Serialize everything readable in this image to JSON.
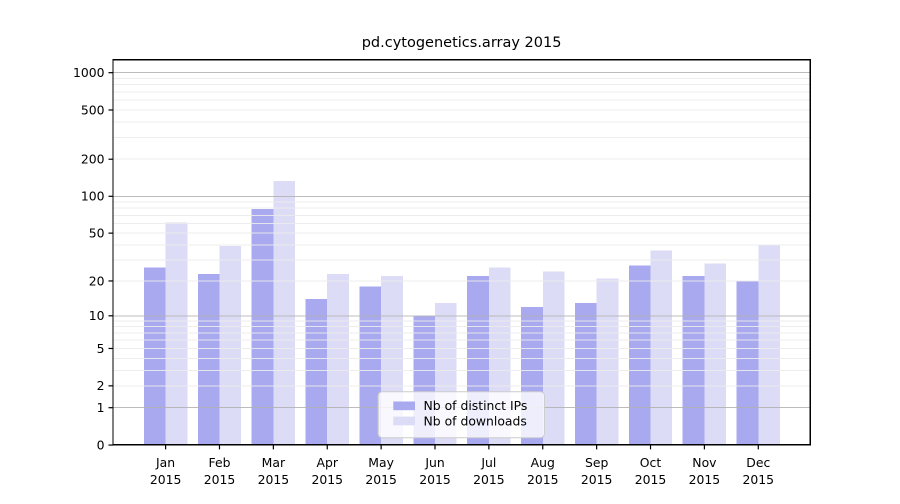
{
  "chart_data": {
    "type": "bar",
    "title": "pd.cytogenetics.array 2015",
    "categories": [
      "Jan",
      "Feb",
      "Mar",
      "Apr",
      "May",
      "Jun",
      "Jul",
      "Aug",
      "Sep",
      "Oct",
      "Nov",
      "Dec"
    ],
    "x_tick_year": "2015",
    "series": [
      {
        "name": "Nb of distinct IPs",
        "color": "#a9a9f0",
        "values": [
          26,
          23,
          79,
          14,
          18,
          10,
          22,
          12,
          13,
          27,
          22,
          20
        ]
      },
      {
        "name": "Nb of downloads",
        "color": "#dcdcf7",
        "values": [
          61,
          39,
          133,
          23,
          22,
          13,
          26,
          24,
          21,
          36,
          28,
          40
        ]
      }
    ],
    "y_axis": {
      "scale": "log1p",
      "tick_values": [
        0,
        1,
        2,
        5,
        10,
        20,
        50,
        100,
        200,
        500,
        1000
      ],
      "tick_labels": [
        "0",
        "1",
        "2",
        "5",
        "10",
        "20",
        "50",
        "100",
        "200",
        "500",
        "1000"
      ],
      "major_grid_values": [
        1,
        10,
        100,
        1000
      ],
      "top_value": 1300
    },
    "legend": {
      "entries": [
        "Nb of distinct IPs",
        "Nb of downloads"
      ],
      "position": "lower-center"
    },
    "grid": true,
    "colors": {
      "major_grid": "#b0b0b0",
      "minor_grid": "#ebebeb",
      "spine": "#000000",
      "text": "#000000",
      "background": "#ffffff",
      "legend_border": "#cccccc",
      "legend_fill": "#ffffff"
    }
  }
}
